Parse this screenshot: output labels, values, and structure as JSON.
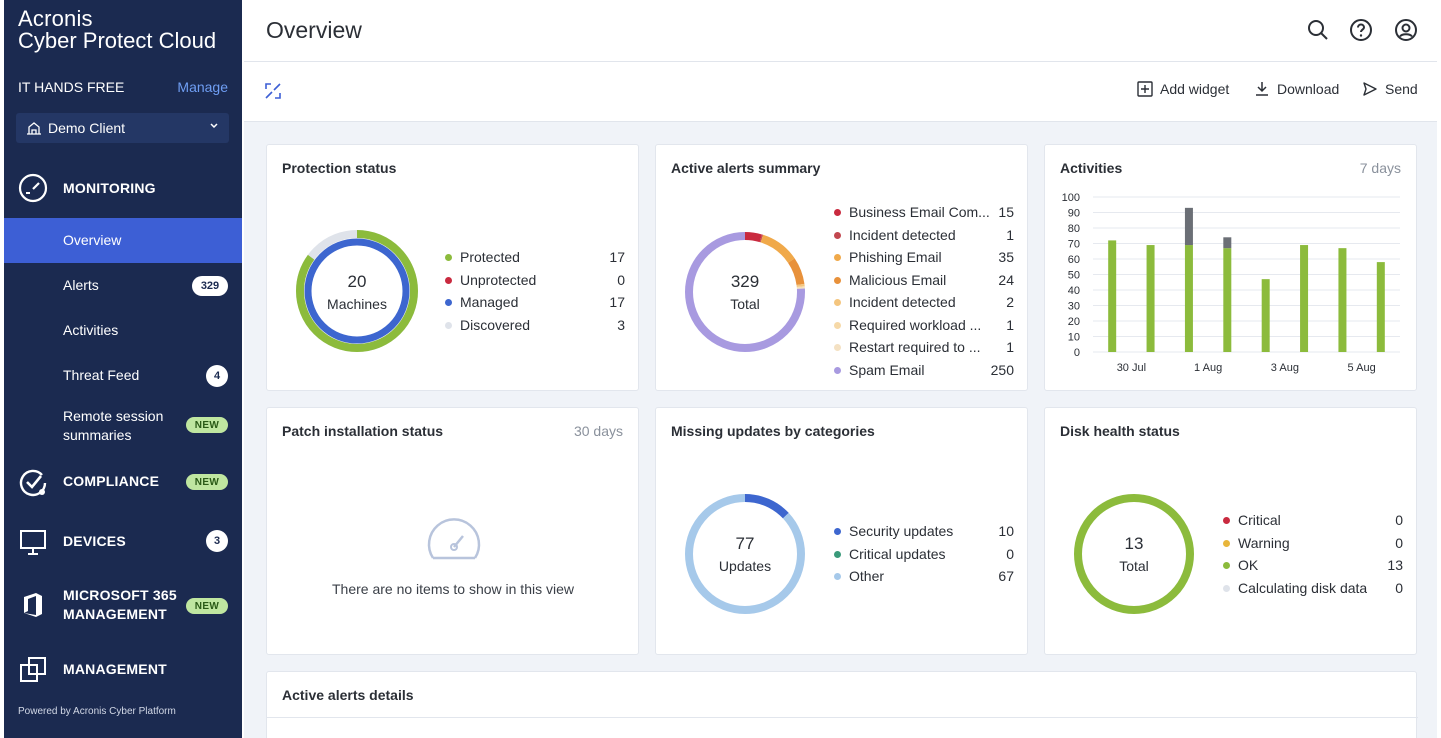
{
  "brand": {
    "line1": "Acronis",
    "line2": "Cyber Protect Cloud"
  },
  "tenant": {
    "name": "IT HANDS FREE",
    "manage": "Manage"
  },
  "client": {
    "name": "Demo Client"
  },
  "sidebar": {
    "monitoring": "MONITORING",
    "items": [
      {
        "label": "Overview"
      },
      {
        "label": "Alerts",
        "badge": "329"
      },
      {
        "label": "Activities"
      },
      {
        "label": "Threat Feed",
        "badge": "4"
      },
      {
        "label": "Remote session summaries",
        "badge": "NEW"
      }
    ],
    "compliance": "COMPLIANCE",
    "compliance_badge": "NEW",
    "devices": "DEVICES",
    "devices_badge": "3",
    "m365_line1": "MICROSOFT 365",
    "m365_line2": "MANAGEMENT",
    "m365_badge": "NEW",
    "management": "MANAGEMENT",
    "powered": "Powered by Acronis Cyber Platform"
  },
  "header": {
    "title": "Overview"
  },
  "toolbar": {
    "add_widget": "Add widget",
    "download": "Download",
    "send": "Send"
  },
  "widgets": {
    "protection": {
      "title": "Protection status",
      "center_value": "20",
      "center_label": "Machines",
      "items": [
        {
          "label": "Protected",
          "value": "17",
          "color": "#8cbb3c"
        },
        {
          "label": "Unprotected",
          "value": "0",
          "color": "#c92a3f"
        },
        {
          "label": "Managed",
          "value": "17",
          "color": "#3d66cf"
        },
        {
          "label": "Discovered",
          "value": "3",
          "color": "#dfe3ea"
        }
      ]
    },
    "alerts": {
      "title": "Active alerts summary",
      "center_value": "329",
      "center_label": "Total",
      "items": [
        {
          "label": "Business Email Com...",
          "value": "15",
          "color": "#c92a3f"
        },
        {
          "label": "Incident detected",
          "value": "1",
          "color": "#c2474f"
        },
        {
          "label": "Phishing Email",
          "value": "35",
          "color": "#f0a94a"
        },
        {
          "label": "Malicious Email",
          "value": "24",
          "color": "#e8913b"
        },
        {
          "label": "Incident detected",
          "value": "2",
          "color": "#f4c57e"
        },
        {
          "label": "Required workload ...",
          "value": "1",
          "color": "#f6d9a8"
        },
        {
          "label": "Restart required to ...",
          "value": "1",
          "color": "#f4e1c3"
        },
        {
          "label": "Spam Email",
          "value": "250",
          "color": "#a89ae0"
        }
      ]
    },
    "activities": {
      "title": "Activities",
      "range": "7 days"
    },
    "patch": {
      "title": "Patch installation status",
      "range": "30 days",
      "empty": "There are no items to show in this view"
    },
    "missing": {
      "title": "Missing updates by categories",
      "center_value": "77",
      "center_label": "Updates",
      "items": [
        {
          "label": "Security updates",
          "value": "10",
          "color": "#3d66cf"
        },
        {
          "label": "Critical updates",
          "value": "0",
          "color": "#3a9a7a"
        },
        {
          "label": "Other",
          "value": "67",
          "color": "#a6c9ea"
        }
      ]
    },
    "disk": {
      "title": "Disk health status",
      "center_value": "13",
      "center_label": "Total",
      "items": [
        {
          "label": "Critical",
          "value": "0",
          "color": "#c92a3f"
        },
        {
          "label": "Warning",
          "value": "0",
          "color": "#e8b63b"
        },
        {
          "label": "OK",
          "value": "13",
          "color": "#8cbb3c"
        },
        {
          "label": "Calculating disk data",
          "value": "0",
          "color": "#dfe3ea"
        }
      ]
    },
    "details": {
      "title": "Active alerts details"
    }
  },
  "chart_data": {
    "type": "bar",
    "title": "Activities",
    "x_tick_labels": [
      "30 Jul",
      "1 Aug",
      "3 Aug",
      "5 Aug"
    ],
    "x_tick_positions": [
      1,
      3,
      5,
      7
    ],
    "ylim": [
      0,
      100
    ],
    "yticks": [
      0,
      10,
      20,
      30,
      40,
      50,
      60,
      70,
      80,
      90,
      100
    ],
    "grid": true,
    "series": [
      {
        "color": "#8cbb3c",
        "values": [
          72,
          69,
          69,
          67,
          47,
          69,
          67,
          58
        ]
      },
      {
        "color": "#6b6f76",
        "values": [
          0,
          0,
          24,
          7,
          0,
          0,
          0,
          0
        ]
      }
    ]
  }
}
